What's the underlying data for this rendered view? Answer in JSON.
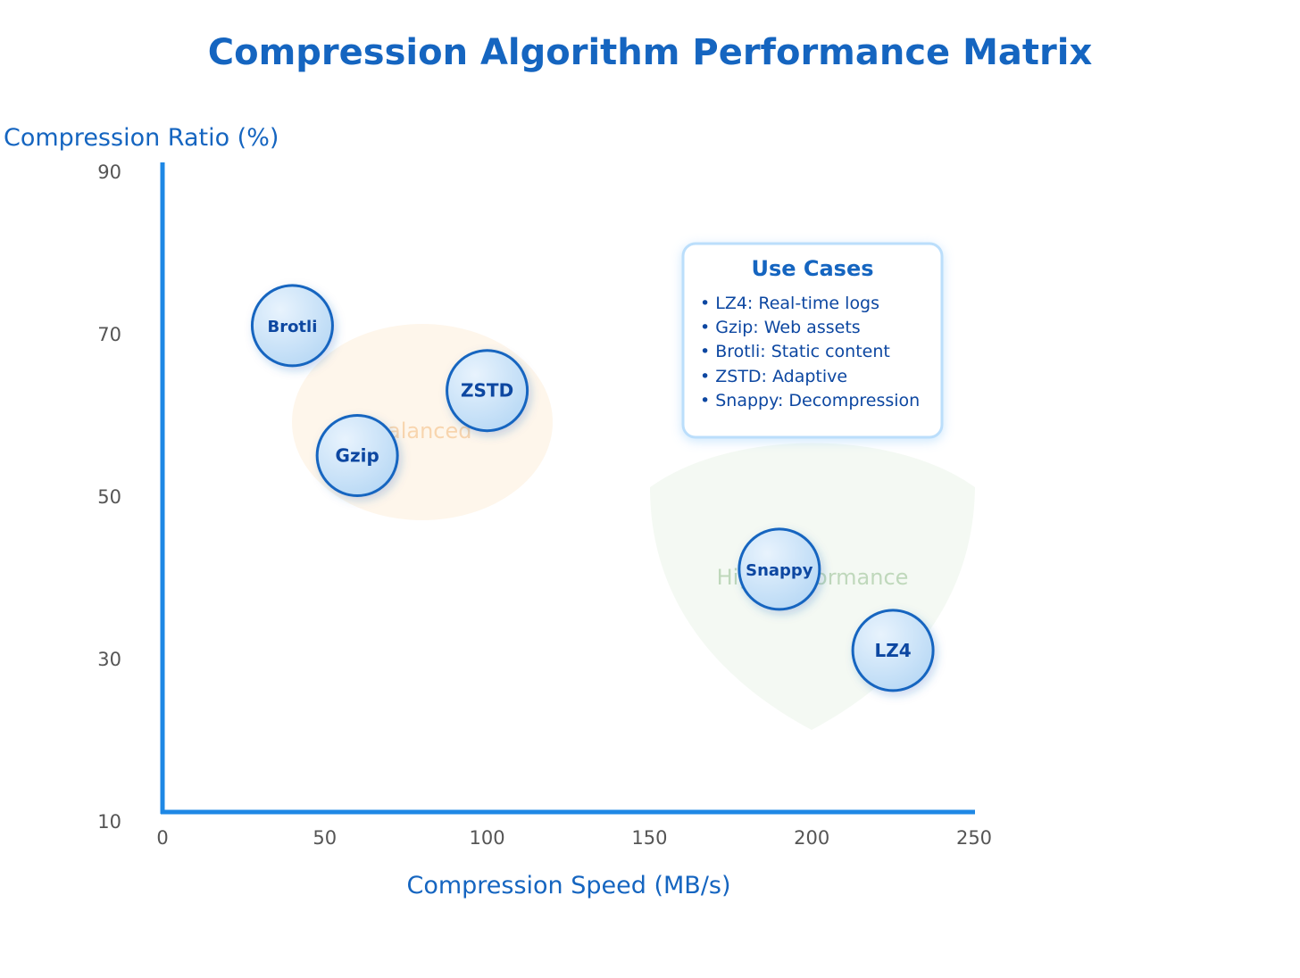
{
  "chart_data": {
    "type": "scatter",
    "title": "Compression Algorithm Performance Matrix",
    "xlabel": "Compression Speed (MB/s)",
    "ylabel": "Compression Ratio (%)",
    "xlim": [
      0,
      250
    ],
    "ylim": [
      10,
      90
    ],
    "xticks": [
      "0",
      "50",
      "100",
      "150",
      "200",
      "250"
    ],
    "yticks": [
      "10",
      "30",
      "50",
      "70",
      "90"
    ],
    "grid": false,
    "points": [
      {
        "label": "Brotli",
        "x": 40,
        "y": 71
      },
      {
        "label": "ZSTD",
        "x": 100,
        "y": 63
      },
      {
        "label": "Gzip",
        "x": 60,
        "y": 55
      },
      {
        "label": "Snappy",
        "x": 190,
        "y": 41
      },
      {
        "label": "LZ4",
        "x": 225,
        "y": 31
      }
    ],
    "regions": [
      {
        "label": "Balanced",
        "color": "#fdebd3"
      },
      {
        "label": "High Performance",
        "color": "#e6f2e4"
      }
    ],
    "annotation": {
      "title": "Use Cases",
      "items": [
        "• LZ4: Real-time logs",
        "• Gzip: Web assets",
        "• Brotli: Static content",
        "• ZSTD: Adaptive",
        "• Snappy: Decompression"
      ]
    },
    "colors": {
      "title": "#1565c0",
      "axis": "#1e88e5",
      "point_stroke": "#1565c0",
      "point_label": "#0d47a1",
      "tick": "#555555"
    }
  }
}
